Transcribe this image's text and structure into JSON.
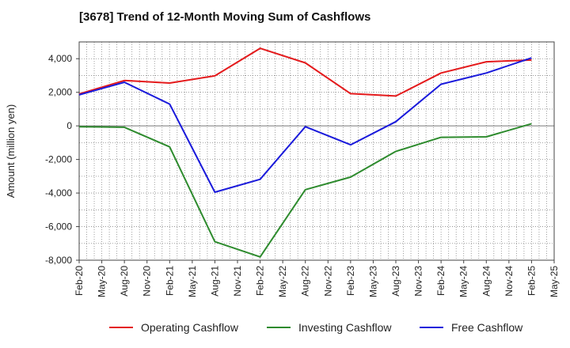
{
  "chart_data": {
    "type": "line",
    "title": "[3678]  Trend of 12-Month Moving Sum of Cashflows",
    "ylabel": "Amount (million yen)",
    "xlabel": "",
    "ylim": [
      -8000,
      5000
    ],
    "yticks": [
      4000,
      2000,
      0,
      -2000,
      -4000,
      -6000,
      -8000
    ],
    "ytick_labels": [
      "4,000",
      "2,000",
      "0",
      "-2,000",
      "-4,000",
      "-6,000",
      "-8,000"
    ],
    "x_labels": [
      "Feb-20",
      "May-20",
      "Aug-20",
      "Nov-20",
      "Feb-21",
      "May-21",
      "Aug-21",
      "Nov-21",
      "Feb-22",
      "May-22",
      "Aug-22",
      "Nov-22",
      "Feb-23",
      "May-23",
      "Aug-23",
      "Nov-23",
      "Feb-24",
      "May-24",
      "Aug-24",
      "Nov-24",
      "Feb-25",
      "May-25"
    ],
    "x": [
      "Feb-20",
      "Aug-20",
      "Feb-21",
      "Aug-21",
      "Feb-22",
      "Aug-22",
      "Feb-23",
      "Aug-23",
      "Feb-24",
      "Aug-24",
      "Feb-25"
    ],
    "grid": true,
    "legend_position": "bottom",
    "series": [
      {
        "name": "Operating Cashflow",
        "color": "#e41a1c",
        "values": [
          1900,
          2700,
          2550,
          2980,
          4620,
          3750,
          1920,
          1780,
          3150,
          3820,
          3920
        ]
      },
      {
        "name": "Investing Cashflow",
        "color": "#2e8b2e",
        "values": [
          -50,
          -80,
          -1250,
          -6900,
          -7800,
          -3800,
          -3050,
          -1520,
          -680,
          -650,
          130
        ]
      },
      {
        "name": "Free Cashflow",
        "color": "#1a1adb",
        "values": [
          1850,
          2600,
          1300,
          -3950,
          -3180,
          -50,
          -1130,
          250,
          2480,
          3150,
          4050
        ]
      }
    ]
  }
}
